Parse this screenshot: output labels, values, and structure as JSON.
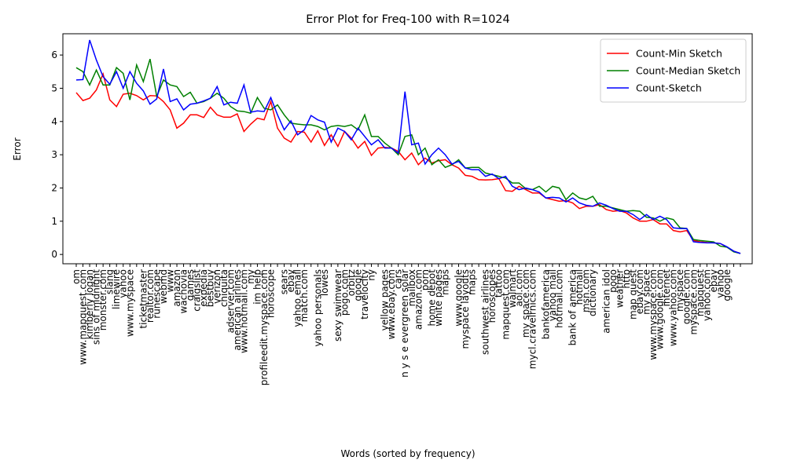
{
  "chart_data": {
    "type": "line",
    "title": "Error Plot for Freq-100 with R=1024",
    "x_label": "Words (sorted by frequency)",
    "y_label": "Error",
    "categories": [
      "om",
      "www.mapquest.com",
      "kimberly logan",
      "sins of midnight",
      "monster.com",
      "slang",
      "limewire",
      "yahoo",
      "www.myspace",
      null,
      "ticketmaster",
      "realtor.com",
      "runescape",
      "webmd",
      "www",
      "amazon",
      "wachovia",
      "games",
      "craigslist",
      "expedia",
      "bestbuy",
      "verizon",
      "chiquita",
      "adserver.com",
      "american airlines",
      "www.hotmail.com",
      "my",
      "im help",
      "profileedit.myspace.com",
      "horoscope",
      null,
      "sears",
      "ebay",
      "yahoo email",
      "match.com",
      null,
      "yahoo personals",
      "lowes",
      null,
      "sexy swimwear",
      "pogo.com",
      "orbitz",
      "google",
      "travelocity",
      "ny",
      null,
      "yellow pages",
      "www.ebay.com",
      "cars",
      "n y s e evergreen solar",
      "mailbox",
      "amazon.com",
      "porn",
      "home depot",
      "white pages",
      "maps",
      null,
      "www.google",
      "myspace layouts",
      "maps",
      null,
      "southwest airlines",
      "horoscopes",
      "tattoo",
      "mapquest.com",
      "walmart",
      "aol.com",
      "my space.com",
      "mycl.cravelrnics.com",
      null,
      "bankofamerica",
      "yahoo mail",
      "hotmail.com",
      null,
      "bank of america",
      "hotmail",
      "msn.com",
      "dictionary",
      null,
      "american idol",
      "pogo",
      "weather",
      "http",
      "map quest",
      "ebay.com",
      "my space",
      "www.myspace.com",
      "www.google.com",
      "internet",
      "www.yahoo.com",
      "myspace",
      "google.com",
      "myspace.com",
      "mapquest",
      "yahoo.com",
      "ebay",
      "yahoo",
      "google",
      null,
      null
    ],
    "series": [
      {
        "name": "Count-Min Sketch",
        "color": "#ff0000",
        "values": [
          4.87,
          4.63,
          4.7,
          4.95,
          5.43,
          4.65,
          4.45,
          4.82,
          4.85,
          4.78,
          4.65,
          4.78,
          4.77,
          4.6,
          4.35,
          3.8,
          3.95,
          4.2,
          4.2,
          4.12,
          4.43,
          4.2,
          4.13,
          4.13,
          4.23,
          3.7,
          3.92,
          4.1,
          4.05,
          4.6,
          3.8,
          3.5,
          3.38,
          3.7,
          3.68,
          3.38,
          3.72,
          3.28,
          3.6,
          3.25,
          3.7,
          3.5,
          3.2,
          3.4,
          2.98,
          3.2,
          3.22,
          3.2,
          3.1,
          2.85,
          3.05,
          2.7,
          2.9,
          2.75,
          2.82,
          2.85,
          2.7,
          2.6,
          2.38,
          2.35,
          2.25,
          2.24,
          2.25,
          2.28,
          1.92,
          1.9,
          2.05,
          1.95,
          1.85,
          1.85,
          1.7,
          1.65,
          1.6,
          1.62,
          1.55,
          1.38,
          1.45,
          1.45,
          1.5,
          1.35,
          1.3,
          1.32,
          1.25,
          1.1,
          1.0,
          1.0,
          1.05,
          0.92,
          0.92,
          0.72,
          0.68,
          0.72,
          0.42,
          0.38,
          0.36,
          0.35,
          0.33,
          0.22,
          0.1,
          0.03
        ]
      },
      {
        "name": "Count-Median Sketch",
        "color": "#008000",
        "values": [
          5.62,
          5.5,
          5.1,
          5.55,
          5.1,
          5.1,
          5.62,
          5.45,
          4.65,
          5.7,
          5.2,
          5.88,
          4.75,
          5.25,
          5.1,
          5.05,
          4.75,
          4.88,
          4.55,
          4.6,
          4.7,
          4.85,
          4.7,
          4.45,
          4.32,
          4.3,
          4.25,
          4.72,
          4.4,
          4.35,
          4.5,
          4.2,
          3.95,
          3.92,
          3.9,
          3.9,
          3.85,
          3.75,
          3.85,
          3.88,
          3.85,
          3.9,
          3.75,
          4.2,
          3.55,
          3.55,
          3.35,
          3.2,
          3.0,
          3.55,
          3.6,
          3.0,
          3.2,
          2.7,
          2.85,
          2.62,
          2.7,
          2.85,
          2.6,
          2.62,
          2.62,
          2.45,
          2.4,
          2.35,
          2.3,
          2.15,
          2.15,
          1.98,
          1.95,
          2.05,
          1.88,
          2.05,
          2.0,
          1.65,
          1.85,
          1.7,
          1.65,
          1.75,
          1.45,
          1.45,
          1.4,
          1.35,
          1.3,
          1.32,
          1.3,
          1.12,
          1.1,
          1.0,
          1.1,
          1.05,
          0.8,
          0.78,
          0.45,
          0.42,
          0.4,
          0.38,
          0.25,
          0.22,
          0.08,
          0.03
        ]
      },
      {
        "name": "Count-Sketch",
        "color": "#0000ff",
        "values": [
          5.25,
          5.26,
          6.45,
          5.85,
          5.35,
          5.12,
          5.5,
          5.0,
          5.5,
          5.15,
          4.92,
          4.52,
          4.68,
          5.58,
          4.6,
          4.68,
          4.35,
          4.52,
          4.55,
          4.62,
          4.7,
          5.05,
          4.5,
          4.58,
          4.55,
          5.1,
          4.28,
          4.32,
          4.3,
          4.72,
          4.2,
          3.75,
          4.02,
          3.6,
          3.75,
          4.18,
          4.05,
          3.98,
          3.38,
          3.8,
          3.7,
          3.45,
          3.8,
          3.55,
          3.3,
          3.45,
          3.2,
          3.2,
          3.05,
          4.9,
          3.3,
          3.35,
          2.72,
          3.0,
          3.2,
          3.0,
          2.72,
          2.8,
          2.6,
          2.55,
          2.55,
          2.35,
          2.42,
          2.28,
          2.35,
          2.05,
          1.95,
          2.0,
          1.95,
          1.88,
          1.7,
          1.72,
          1.7,
          1.58,
          1.7,
          1.55,
          1.48,
          1.45,
          1.55,
          1.48,
          1.38,
          1.3,
          1.3,
          1.2,
          1.05,
          1.2,
          1.05,
          1.15,
          1.05,
          0.8,
          0.78,
          0.78,
          0.38,
          0.36,
          0.35,
          0.35,
          0.33,
          0.23,
          0.1,
          0.03
        ]
      }
    ],
    "ylim": [
      -0.28,
      6.64
    ],
    "yticks": [
      0,
      1,
      2,
      3,
      4,
      5,
      6
    ],
    "legend": "upper right"
  }
}
